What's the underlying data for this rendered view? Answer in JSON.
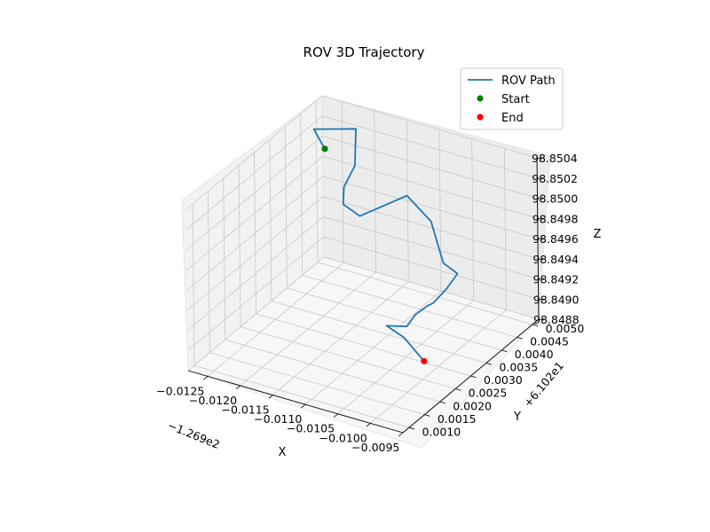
{
  "chart_data": {
    "type": "line3d",
    "title": "ROV 3D Trajectory",
    "xlabel": "X",
    "ylabel": "Y",
    "zlabel": "Z",
    "x_offset_label": "−1.269e2",
    "y_offset_label": "+6.102e1",
    "x_ticks": [
      "−0.0125",
      "−0.0120",
      "−0.0115",
      "−0.0110",
      "−0.0105",
      "−0.0100",
      "−0.0095"
    ],
    "y_ticks": [
      "0.0010",
      "0.0015",
      "0.0020",
      "0.0025",
      "0.0030",
      "0.0035",
      "0.0040",
      "0.0045",
      "0.0050"
    ],
    "z_ticks": [
      "98.8488",
      "98.8490",
      "98.8492",
      "98.8494",
      "98.8496",
      "98.8498",
      "98.8500",
      "98.8502",
      "98.8504"
    ],
    "xlim": [
      -0.0128,
      -0.0095
    ],
    "ylim": [
      0.0008,
      0.0052
    ],
    "zlim": [
      98.8488,
      98.8504
    ],
    "series": [
      {
        "name": "ROV Path",
        "color": "#1f77b4",
        "points": [
          [
            -0.01249,
            0.00462,
            98.85008
          ],
          [
            -0.01255,
            0.0044,
            98.85032
          ],
          [
            -0.01206,
            0.00473,
            98.85033
          ],
          [
            -0.012,
            0.00456,
            98.85002
          ],
          [
            -0.012,
            0.0042,
            98.8499
          ],
          [
            -0.01187,
            0.0039,
            98.84983
          ],
          [
            -0.01163,
            0.00393,
            98.84975
          ],
          [
            -0.01126,
            0.00468,
            98.84983
          ],
          [
            -0.01098,
            0.00486,
            98.84958
          ],
          [
            -0.01073,
            0.00472,
            98.84925
          ],
          [
            -0.01059,
            0.00488,
            98.84913
          ],
          [
            -0.01051,
            0.00436,
            98.84913
          ],
          [
            -0.01041,
            0.00372,
            98.84917
          ],
          [
            -0.0102,
            0.00311,
            98.84934
          ],
          [
            -0.01029,
            0.00289,
            98.84929
          ],
          [
            -0.01042,
            0.00288,
            98.84915
          ],
          [
            -0.01055,
            0.0025,
            98.84923
          ],
          [
            -0.01026,
            0.00245,
            98.84918
          ],
          [
            -0.00993,
            0.0024,
            98.84902
          ]
        ]
      },
      {
        "name": "Start",
        "color": "#008000",
        "point": [
          -0.01249,
          0.00462,
          98.85008
        ]
      },
      {
        "name": "End",
        "color": "#ff0000",
        "point": [
          -0.00993,
          0.0024,
          98.84902
        ]
      }
    ],
    "grid": true,
    "legend": "upper-right"
  }
}
